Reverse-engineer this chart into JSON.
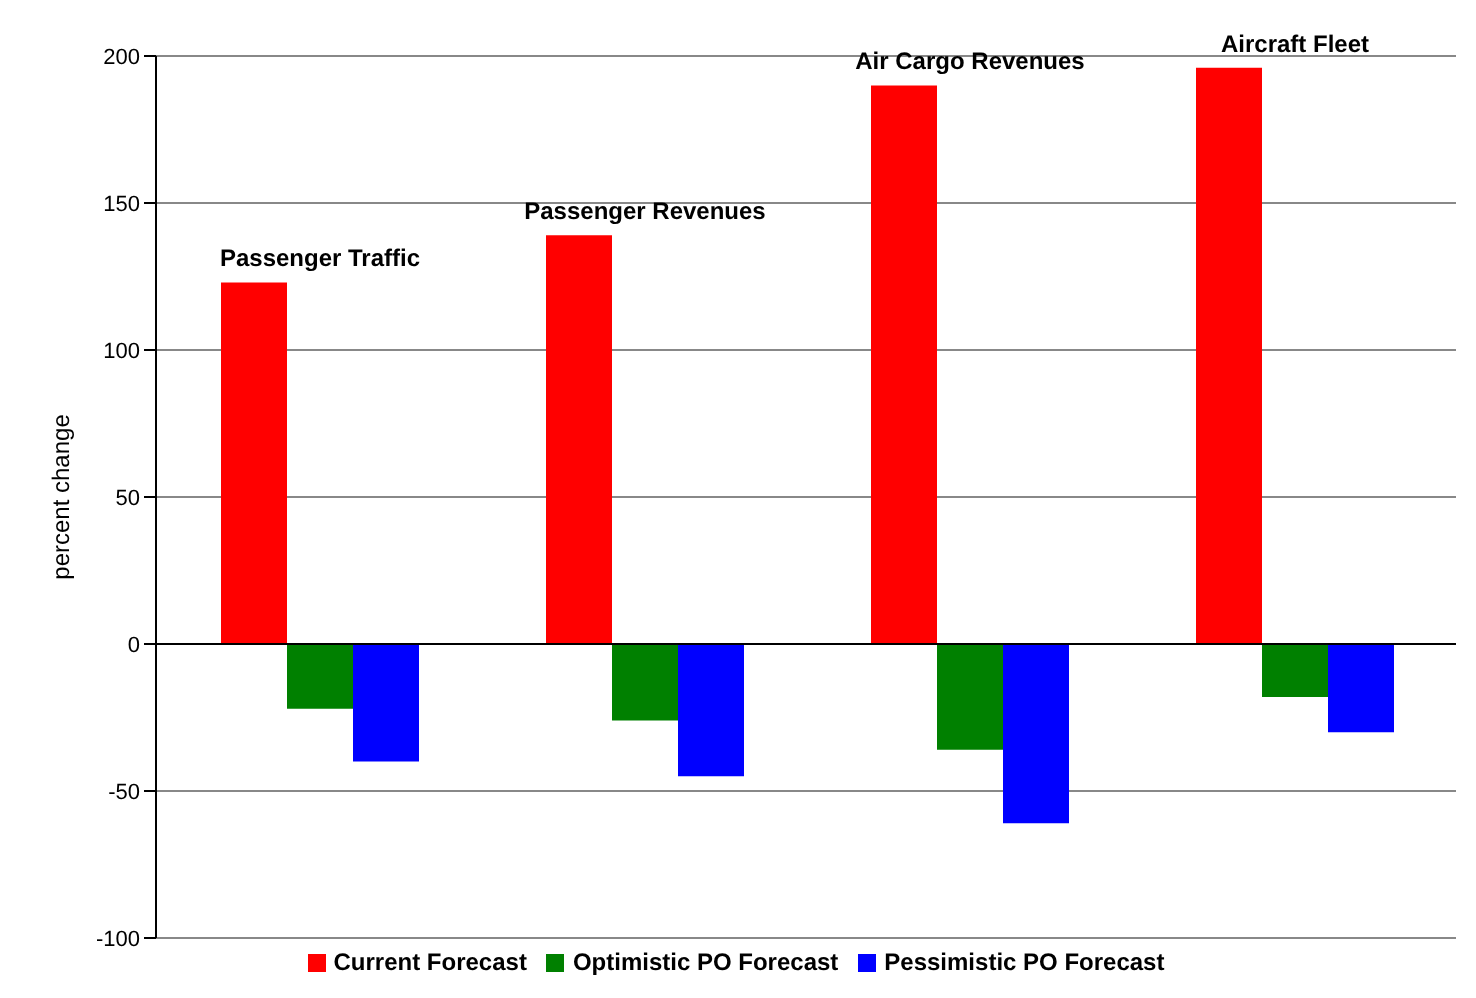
{
  "chart_data": {
    "type": "bar",
    "ylabel": "percent change",
    "categories": [
      "Passenger Traffic",
      "Passenger Revenues",
      "Air Cargo Revenues",
      "Aircraft Fleet"
    ],
    "series": [
      {
        "name": "Current Forecast",
        "color": "#ff0000",
        "values": [
          123,
          139,
          190,
          196
        ]
      },
      {
        "name": "Optimistic PO Forecast",
        "color": "#008000",
        "values": [
          -22,
          -26,
          -36,
          -18
        ]
      },
      {
        "name": "Pessimistic PO Forecast",
        "color": "#0000ff",
        "values": [
          -40,
          -45,
          -61,
          -30
        ]
      }
    ],
    "ylim": [
      -100,
      200
    ],
    "yticks": [
      -100,
      -50,
      0,
      50,
      100,
      150,
      200
    ],
    "grid": "y",
    "legend": "bottom",
    "tick_labels": "y"
  }
}
